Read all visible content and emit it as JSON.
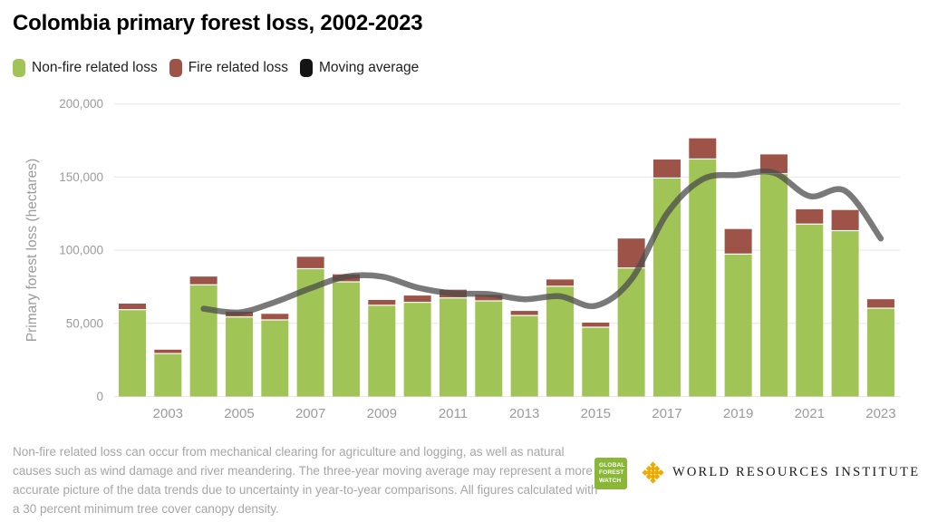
{
  "title": "Colombia primary forest loss, 2002-2023",
  "footnote": "Non-fire related loss can occur from mechanical clearing for agriculture and logging, as well as natural causes such as wind damage and river meandering. The three-year moving average may represent a more accurate picture of the data trends due to uncertainty in year-to-year comparisons. All figures calculated with a 30 percent minimum tree cover canopy density.",
  "logos": {
    "gfw": {
      "lines": [
        "GLOBAL",
        "FOREST",
        "WATCH"
      ],
      "bg_color": "#8ab737"
    },
    "wri": {
      "text": "WORLD RESOURCES INSTITUTE",
      "icon_color": "#f0ab00"
    }
  },
  "chart_data": {
    "type": "bar",
    "stacked": true,
    "title": "Colombia primary forest loss, 2002-2023",
    "xlabel": "",
    "ylabel": "Primary forest loss (hectares)",
    "ylim": [
      0,
      200000
    ],
    "grid": true,
    "legend_position": "top",
    "ytick_values": [
      0,
      50000,
      100000,
      150000,
      200000
    ],
    "ytick_labels": [
      "0",
      "50,000",
      "100,000",
      "150,000",
      "200,000"
    ],
    "xtick_labels": [
      "2003",
      "2005",
      "2007",
      "2009",
      "2011",
      "2013",
      "2015",
      "2017",
      "2019",
      "2021",
      "2023"
    ],
    "categories": [
      2002,
      2003,
      2004,
      2005,
      2006,
      2007,
      2008,
      2009,
      2010,
      2011,
      2012,
      2013,
      2014,
      2015,
      2016,
      2017,
      2018,
      2019,
      2020,
      2021,
      2022,
      2023
    ],
    "series": [
      {
        "name": "Non-fire related loss",
        "type": "bar",
        "color": "#a0c455",
        "values": [
          59000,
          29000,
          76000,
          54000,
          52000,
          87000,
          78000,
          62000,
          64000,
          67000,
          65000,
          55000,
          75000,
          47000,
          87500,
          149000,
          162000,
          97000,
          152000,
          117500,
          113000,
          60000
        ]
      },
      {
        "name": "Fire related loss",
        "type": "bar",
        "color": "#9d5348",
        "values": [
          4500,
          3000,
          6000,
          4000,
          4500,
          8500,
          5500,
          4000,
          5000,
          6000,
          4500,
          3500,
          5000,
          3500,
          20500,
          13000,
          14500,
          17500,
          13500,
          10500,
          14500,
          6500
        ]
      },
      {
        "name": "Moving average",
        "type": "line",
        "color": "#4c4c4c",
        "chip_color": "#141414",
        "values": [
          null,
          null,
          60000,
          57500,
          64500,
          74000,
          82000,
          82000,
          74500,
          70500,
          70000,
          66500,
          68500,
          62000,
          80000,
          125000,
          148500,
          151500,
          153000,
          137000,
          140500,
          108000
        ]
      }
    ],
    "axis_text_color": "#9b9b9b",
    "gridline_color": "#e7e7e7"
  }
}
